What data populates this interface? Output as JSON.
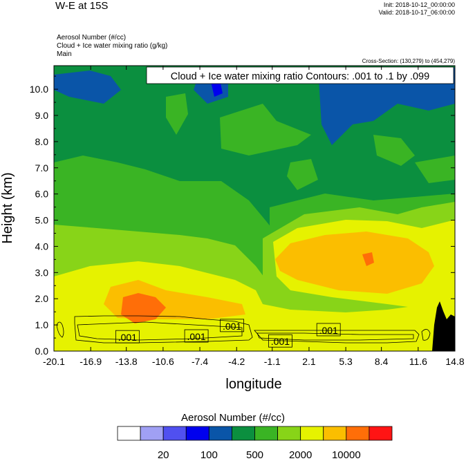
{
  "header": {
    "title": "W-E at 15S",
    "init": "Init: 2018-10-12_00:00:00",
    "valid": "Valid: 2018-10-17_06:00:00",
    "fields": [
      "Aerosol Number   (#/cc)",
      "Cloud + Ice water mixing ratio   (g/kg)",
      "Main"
    ],
    "cross_section": "Cross-Section: (130,279) to (454,279)"
  },
  "colorbar": {
    "title": "Aerosol Number  (#/cc)",
    "colors": [
      "#ffffff",
      "#a0a0f4",
      "#5050f0",
      "#0000ee",
      "#0a55a8",
      "#0b8f3f",
      "#3ab424",
      "#88d418",
      "#e6f200",
      "#fbbe00",
      "#ff6e08",
      "#ff1414"
    ],
    "labels": [
      "20",
      "100",
      "500",
      "2000",
      "10000"
    ]
  },
  "chart_data": {
    "type": "heatmap",
    "title": "W-E at 15S",
    "xlabel": "longitude",
    "ylabel": "Height (km)",
    "x_ticks": [
      "-20.1",
      "-16.9",
      "-13.8",
      "-10.6",
      "-7.4",
      "-4.2",
      "-1.1",
      "2.1",
      "5.3",
      "8.4",
      "11.6",
      "14.8"
    ],
    "y_ticks": [
      "0.0",
      "1.0",
      "2.0",
      "3.0",
      "4.0",
      "5.0",
      "6.0",
      "7.0",
      "8.0",
      "9.0",
      "10.0"
    ],
    "xlim": [
      -20.1,
      14.8
    ],
    "ylim": [
      0,
      10.9
    ],
    "grid": false,
    "contour_title": "Cloud + Ice water mixing ratio Contours: .001 to .1 by .099",
    "contour_labels": [
      ".001",
      ".001",
      ".001",
      ".001",
      ".001"
    ],
    "contour_levels": [
      0.001,
      0.1
    ],
    "colorbar_levels": [
      20,
      100,
      500,
      2000,
      10000
    ]
  }
}
